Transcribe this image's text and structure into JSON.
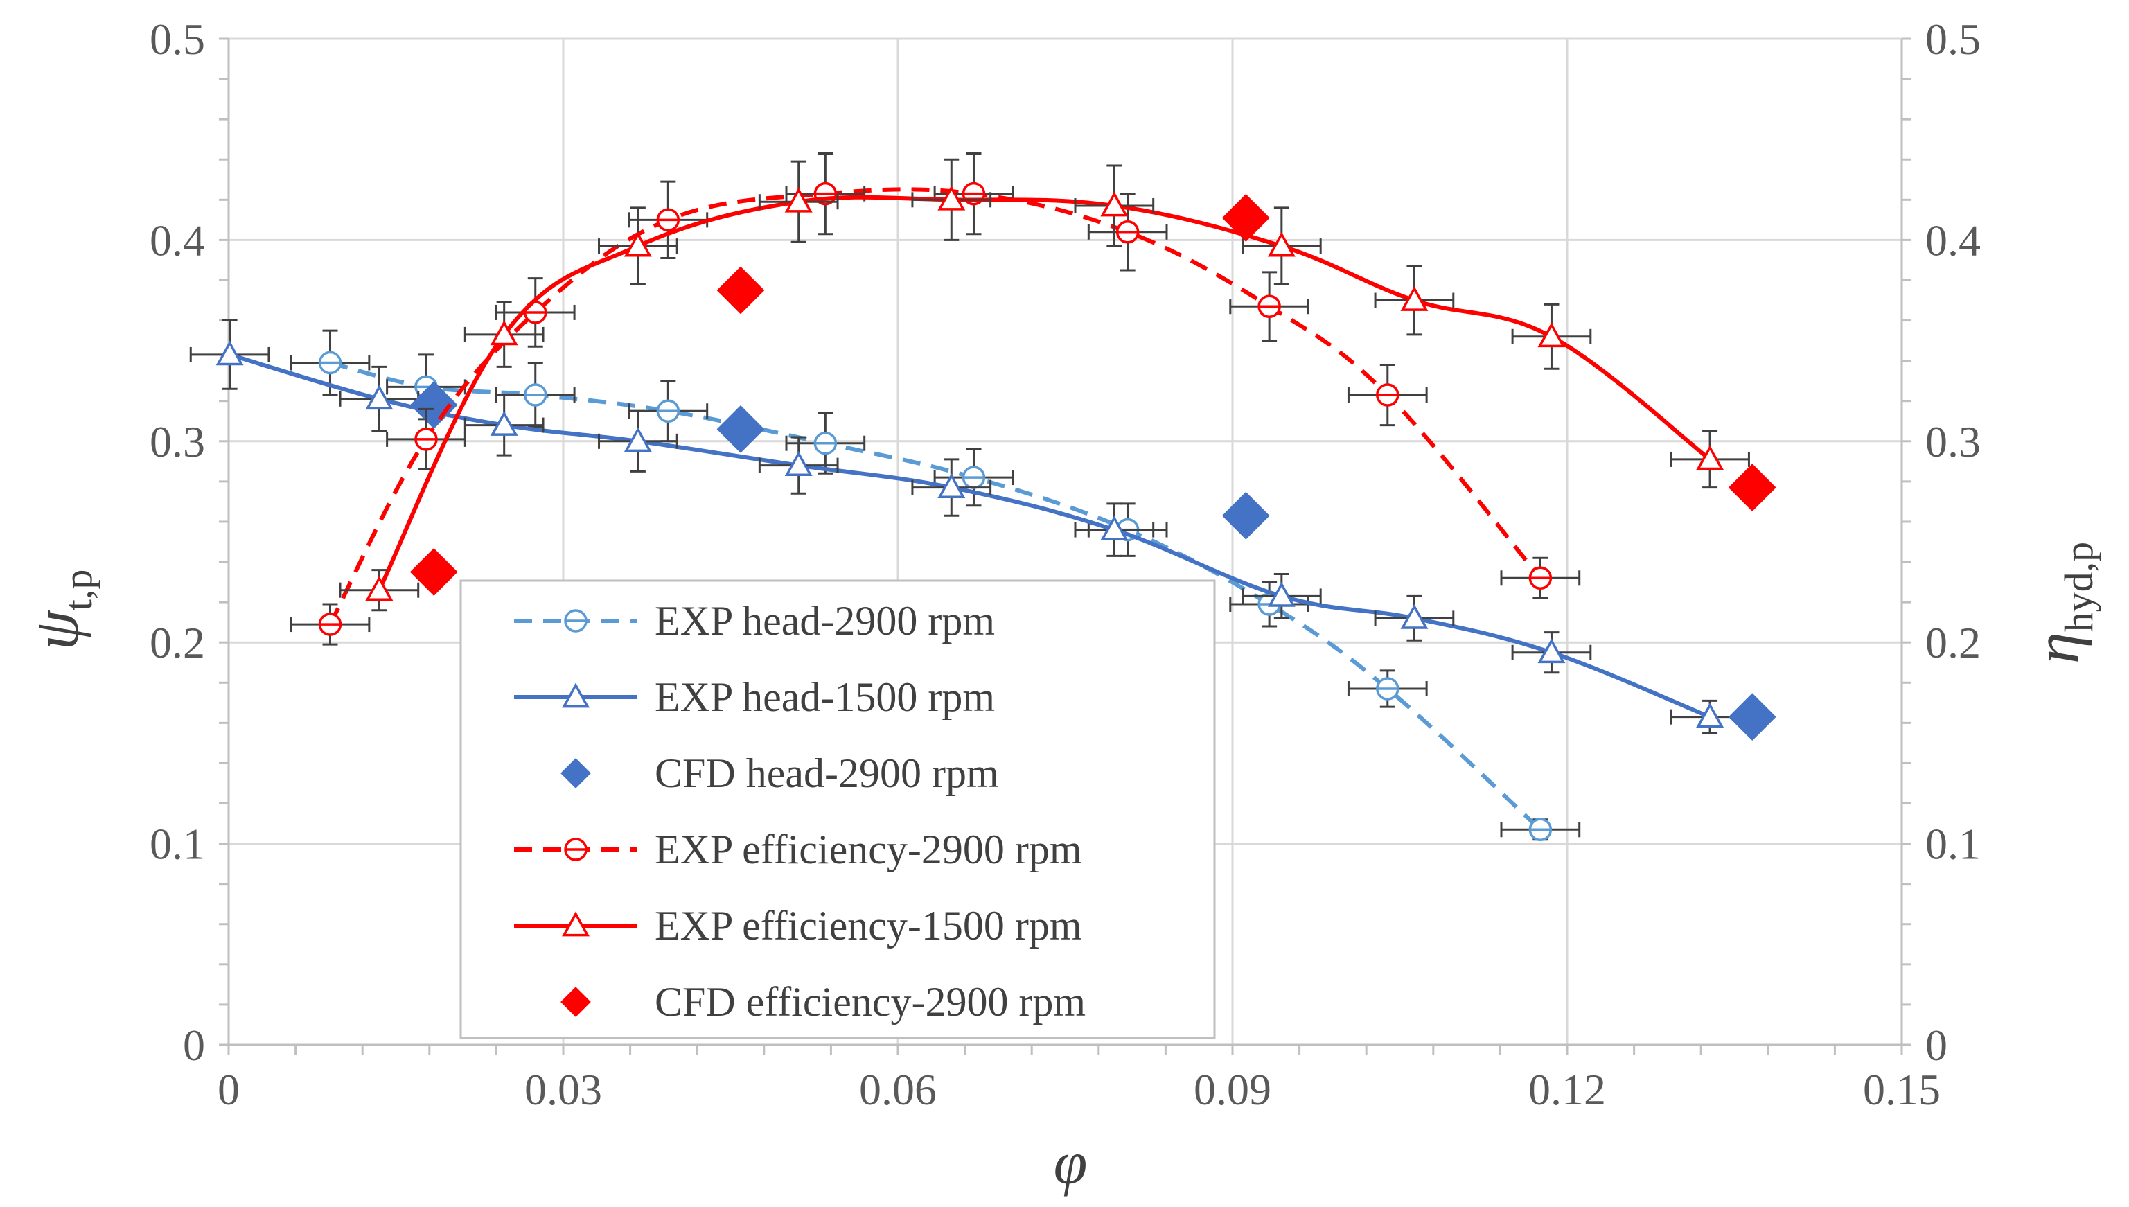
{
  "chart_data": {
    "type": "scatter",
    "title": "",
    "xlabel": "φ",
    "ylabel_left_main": "ψ",
    "ylabel_left_sub": "t,p",
    "ylabel_right_main": "η",
    "ylabel_right_sub": "hyd,p",
    "xlim": [
      0,
      0.15
    ],
    "ylim": [
      0,
      0.5
    ],
    "y2lim": [
      0,
      0.5
    ],
    "xticks": [
      0,
      0.03,
      0.06,
      0.09,
      0.12,
      0.15
    ],
    "xtick_labels": [
      "0",
      "0.03",
      "0.06",
      "0.09",
      "0.12",
      "0.15"
    ],
    "yticks": [
      0,
      0.1,
      0.2,
      0.3,
      0.4,
      0.5
    ],
    "ytick_labels": [
      "0",
      "0.1",
      "0.2",
      "0.3",
      "0.4",
      "0.5"
    ],
    "y2tick_labels": [
      "0",
      "0.1",
      "0.2",
      "0.3",
      "0.4",
      "0.5"
    ],
    "grid": true,
    "legend_position": "bottom-center",
    "series": [
      {
        "name": "EXP head-2900 rpm",
        "color": "#5b9bd5",
        "line": "dashed",
        "marker": "circle-bar",
        "x": [
          0.0091,
          0.0177,
          0.0275,
          0.0394,
          0.0535,
          0.0668,
          0.0806,
          0.0933,
          0.1039,
          0.1176
        ],
        "y": [
          0.339,
          0.327,
          0.323,
          0.315,
          0.299,
          0.282,
          0.256,
          0.219,
          0.177,
          0.107
        ],
        "yerr": [
          0.016,
          0.016,
          0.016,
          0.015,
          0.015,
          0.014,
          0.013,
          0.011,
          0.009,
          0.005
        ],
        "xerr": 0.0035
      },
      {
        "name": "EXP head-1500 rpm",
        "color": "#4472c4",
        "line": "solid",
        "marker": "triangle",
        "x": [
          0.0001,
          0.0135,
          0.0247,
          0.0367,
          0.0511,
          0.0648,
          0.0794,
          0.0944,
          0.1063,
          0.1186,
          0.1328
        ],
        "y": [
          0.343,
          0.321,
          0.308,
          0.3,
          0.288,
          0.277,
          0.256,
          0.223,
          0.212,
          0.195,
          0.163
        ],
        "yerr": [
          0.017,
          0.016,
          0.015,
          0.015,
          0.014,
          0.014,
          0.013,
          0.011,
          0.011,
          0.01,
          0.008
        ],
        "xerr": 0.0035
      },
      {
        "name": "CFD head-2900 rpm",
        "color": "#4472c4",
        "line": "none",
        "marker": "diamond",
        "x": [
          0.0184,
          0.0459,
          0.0912,
          0.1366
        ],
        "y": [
          0.318,
          0.306,
          0.263,
          0.163
        ]
      },
      {
        "name": "EXP efficiency-2900 rpm",
        "color": "#ff0000",
        "line": "dashed",
        "marker": "circle-bar",
        "x": [
          0.0091,
          0.0177,
          0.0275,
          0.0394,
          0.0535,
          0.0668,
          0.0806,
          0.0933,
          0.1039,
          0.1176
        ],
        "y": [
          0.209,
          0.301,
          0.364,
          0.41,
          0.423,
          0.423,
          0.404,
          0.367,
          0.323,
          0.232
        ],
        "yerr": [
          0.01,
          0.015,
          0.017,
          0.019,
          0.02,
          0.02,
          0.019,
          0.017,
          0.015,
          0.01
        ],
        "xerr": 0.0035
      },
      {
        "name": "EXP efficiency-1500 rpm",
        "color": "#ff0000",
        "line": "solid",
        "marker": "triangle",
        "x": [
          0.0135,
          0.0247,
          0.0367,
          0.0511,
          0.0648,
          0.0794,
          0.0944,
          0.1063,
          0.1186,
          0.1328
        ],
        "y": [
          0.226,
          0.353,
          0.397,
          0.419,
          0.42,
          0.417,
          0.397,
          0.37,
          0.352,
          0.291
        ],
        "yerr": [
          0.01,
          0.016,
          0.019,
          0.02,
          0.02,
          0.02,
          0.019,
          0.017,
          0.016,
          0.014
        ],
        "xerr": 0.0035
      },
      {
        "name": "CFD efficiency-2900 rpm",
        "color": "#ff0000",
        "line": "none",
        "marker": "diamond",
        "x": [
          0.0184,
          0.0459,
          0.0912,
          0.1366
        ],
        "y": [
          0.235,
          0.375,
          0.411,
          0.277
        ]
      }
    ]
  }
}
